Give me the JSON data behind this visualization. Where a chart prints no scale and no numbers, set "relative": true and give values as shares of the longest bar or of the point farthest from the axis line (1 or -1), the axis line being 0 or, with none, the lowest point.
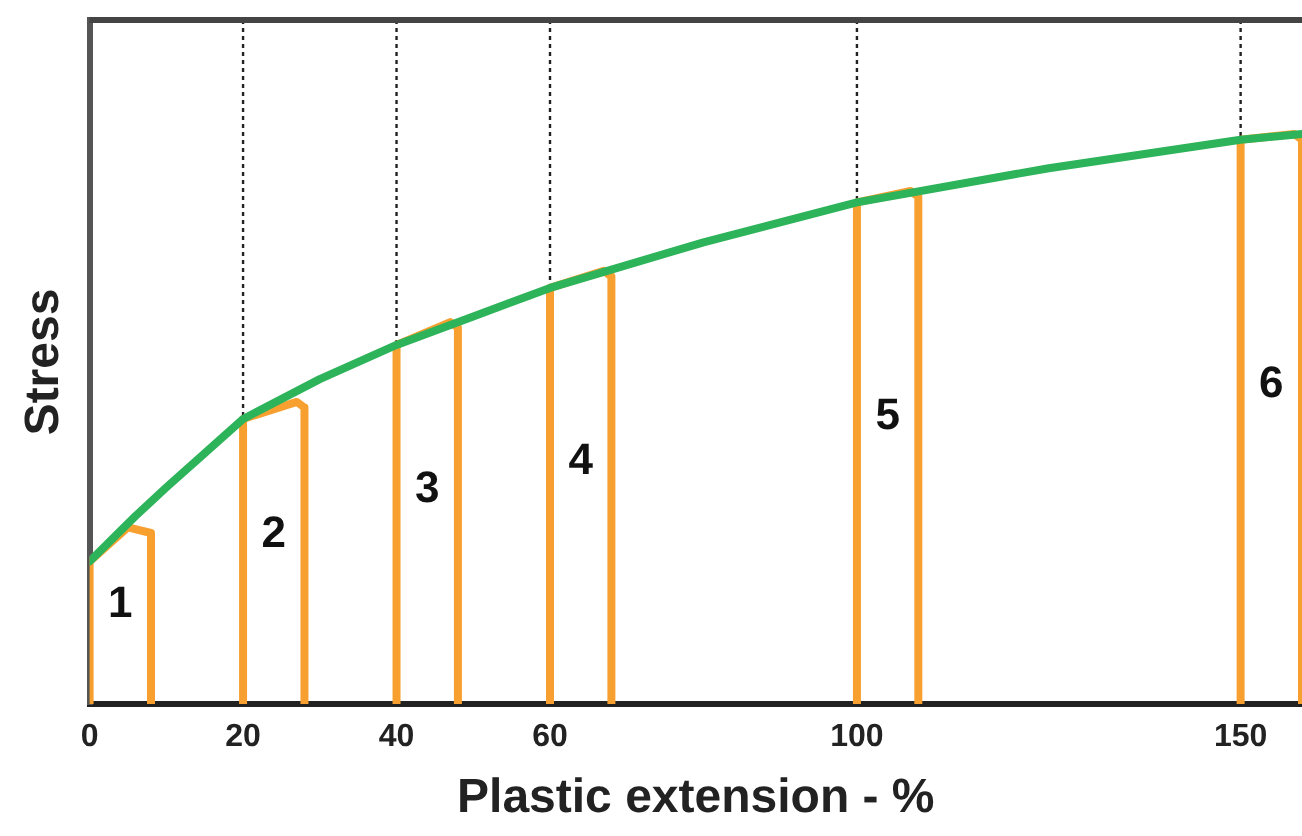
{
  "chart_data": {
    "type": "line",
    "relative": true,
    "xlabel": "Plastic extension - %",
    "ylabel": "Stress",
    "xlim": [
      0,
      158
    ],
    "xticks": [
      0,
      20,
      40,
      60,
      100,
      150
    ],
    "grid": false,
    "legend": false,
    "marker": "none",
    "line_style": "solid",
    "tick_labels": "x",
    "series": [
      {
        "color": "#2db35a",
        "x": [
          0,
          3,
          6,
          10,
          15,
          20,
          30,
          40,
          50,
          60,
          80,
          100,
          125,
          150,
          158
        ],
        "values": [
          0.25,
          0.29,
          0.33,
          0.38,
          0.44,
          0.5,
          0.57,
          0.63,
          0.68,
          0.73,
          0.81,
          0.88,
          0.94,
          0.99,
          1.0
        ]
      },
      {
        "name": "1",
        "color": "#f7a030",
        "x": [
          0,
          0,
          5,
          8,
          8
        ],
        "values": [
          0,
          0.25,
          0.31,
          0.3,
          0
        ]
      },
      {
        "name": "2",
        "color": "#f7a030",
        "x": [
          20,
          20,
          27,
          28,
          28
        ],
        "values": [
          0,
          0.5,
          0.53,
          0.52,
          0
        ]
      },
      {
        "name": "3",
        "color": "#f7a030",
        "x": [
          40,
          40,
          47,
          48,
          48
        ],
        "values": [
          0,
          0.63,
          0.67,
          0.66,
          0
        ]
      },
      {
        "name": "4",
        "color": "#f7a030",
        "x": [
          60,
          60,
          67,
          68,
          68
        ],
        "values": [
          0,
          0.73,
          0.76,
          0.75,
          0
        ]
      },
      {
        "name": "5",
        "color": "#f7a030",
        "x": [
          100,
          100,
          107,
          108,
          108
        ],
        "values": [
          0,
          0.88,
          0.9,
          0.89,
          0
        ]
      },
      {
        "name": "6",
        "color": "#f7a030",
        "x": [
          150,
          150,
          157,
          158,
          158
        ],
        "values": [
          0,
          0.99,
          1.0,
          0.99,
          0
        ]
      }
    ],
    "ref_lines": [
      {
        "axis": "x",
        "value": 20,
        "color": "#222222",
        "line_style": "dotted"
      },
      {
        "axis": "x",
        "value": 40,
        "color": "#222222",
        "line_style": "dotted"
      },
      {
        "axis": "x",
        "value": 60,
        "color": "#222222",
        "line_style": "dotted"
      },
      {
        "axis": "x",
        "value": 100,
        "color": "#222222",
        "line_style": "dotted"
      },
      {
        "axis": "x",
        "value": 150,
        "color": "#222222",
        "line_style": "dotted"
      }
    ]
  }
}
